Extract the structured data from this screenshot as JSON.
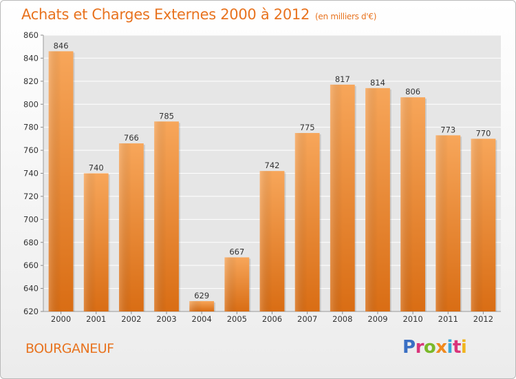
{
  "title": "Achats et Charges Externes 2000 à 2012",
  "unit_note": "(en milliers d'€)",
  "commune": "BOURGANEUF",
  "logo": {
    "letters": [
      "P",
      "r",
      "o",
      "x",
      "i",
      "t",
      "i"
    ]
  },
  "colors": {
    "bar_light": "#f7a65a",
    "bar_dark": "#d96d14",
    "accent": "#e8731f"
  },
  "chart_data": {
    "type": "bar",
    "title": "Achats et Charges Externes 2000 à 2012",
    "subtitle": "(en milliers d'€)",
    "categories": [
      "2000",
      "2001",
      "2002",
      "2003",
      "2004",
      "2005",
      "2006",
      "2007",
      "2008",
      "2009",
      "2010",
      "2011",
      "2012"
    ],
    "values": [
      846,
      740,
      766,
      785,
      629,
      667,
      742,
      775,
      817,
      814,
      806,
      773,
      770
    ],
    "ylim": [
      620,
      860
    ],
    "yticks": [
      620,
      640,
      660,
      680,
      700,
      720,
      740,
      760,
      780,
      800,
      820,
      840,
      860
    ],
    "grid": true,
    "data_labels": true
  }
}
